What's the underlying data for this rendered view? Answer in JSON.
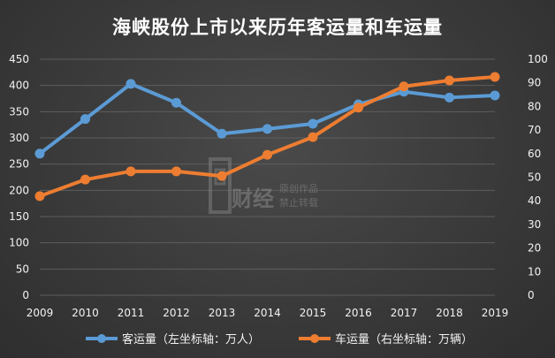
{
  "chart_data": {
    "type": "line",
    "title": "海峡股份上市以来历年客运量和车运量",
    "categories": [
      "2009",
      "2010",
      "2011",
      "2012",
      "2013",
      "2014",
      "2015",
      "2016",
      "2017",
      "2018",
      "2019"
    ],
    "y_left": {
      "min": 0,
      "max": 450,
      "step": 50,
      "ticks": [
        "0",
        "50",
        "100",
        "150",
        "200",
        "250",
        "300",
        "350",
        "400",
        "450"
      ]
    },
    "y_right": {
      "min": 0,
      "max": 100,
      "step": 10,
      "ticks": [
        "0",
        "10",
        "20",
        "30",
        "40",
        "50",
        "60",
        "70",
        "80",
        "90",
        "100"
      ]
    },
    "series": [
      {
        "name": "客运量（左坐标轴：万人）",
        "axis": "left",
        "color": "#5b9bd5",
        "values": [
          270,
          336,
          403,
          367,
          308,
          317,
          327,
          364,
          388,
          377,
          381
        ]
      },
      {
        "name": "车运量（右坐标轴：万辆）",
        "axis": "right",
        "color": "#ed7d31",
        "values": [
          42,
          49,
          52.5,
          52.5,
          50.5,
          59.5,
          67,
          79.5,
          88.5,
          91,
          92.5
        ]
      }
    ],
    "grid": true,
    "legend_position": "bottom"
  },
  "watermark": {
    "brand": "财经",
    "line1": "原创作品",
    "line2": "禁止转载"
  }
}
